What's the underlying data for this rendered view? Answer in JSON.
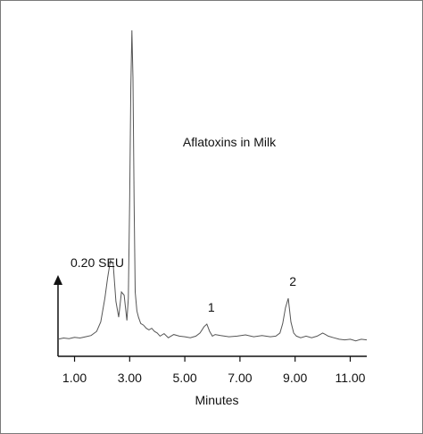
{
  "chart_data": {
    "type": "line",
    "title": "Aflatoxins in Milk",
    "xlabel": "Minutes",
    "ylabel": "",
    "scale_bar_label": "0.20 SEU",
    "xlim": [
      0.4,
      11.6
    ],
    "ylim": [
      0,
      1.0
    ],
    "x_ticks": [
      {
        "value": 1.0,
        "label": "1.00"
      },
      {
        "value": 3.0,
        "label": "3.00"
      },
      {
        "value": 5.0,
        "label": "5.00"
      },
      {
        "value": 7.0,
        "label": "7.00"
      },
      {
        "value": 9.0,
        "label": "9.00"
      },
      {
        "value": 11.0,
        "label": "11.00"
      }
    ],
    "annotations": [
      {
        "text": "1",
        "x": 5.83
      },
      {
        "text": "2",
        "x": 8.79
      }
    ],
    "series": [
      {
        "color": "#555555",
        "x": [
          0.4,
          0.6,
          0.8,
          1.0,
          1.2,
          1.4,
          1.6,
          1.8,
          1.95,
          2.1,
          2.2,
          2.3,
          2.4,
          2.5,
          2.6,
          2.7,
          2.8,
          2.9,
          2.95,
          3.0,
          3.04,
          3.08,
          3.12,
          3.16,
          3.2,
          3.26,
          3.32,
          3.4,
          3.5,
          3.6,
          3.7,
          3.8,
          3.9,
          4.0,
          4.1,
          4.25,
          4.4,
          4.6,
          4.8,
          5.0,
          5.2,
          5.4,
          5.55,
          5.7,
          5.8,
          5.9,
          6.0,
          6.1,
          6.3,
          6.6,
          6.9,
          7.2,
          7.5,
          7.8,
          8.1,
          8.3,
          8.45,
          8.55,
          8.65,
          8.75,
          8.85,
          8.95,
          9.05,
          9.2,
          9.4,
          9.6,
          9.8,
          10.0,
          10.1,
          10.2,
          10.4,
          10.6,
          10.8,
          11.0,
          11.2,
          11.4,
          11.6
        ],
        "y": [
          0.02,
          0.024,
          0.022,
          0.026,
          0.024,
          0.028,
          0.032,
          0.045,
          0.075,
          0.15,
          0.215,
          0.27,
          0.26,
          0.14,
          0.09,
          0.17,
          0.16,
          0.08,
          0.15,
          0.46,
          0.82,
          1.0,
          0.85,
          0.45,
          0.17,
          0.11,
          0.09,
          0.07,
          0.065,
          0.055,
          0.05,
          0.055,
          0.045,
          0.04,
          0.03,
          0.038,
          0.025,
          0.035,
          0.03,
          0.028,
          0.025,
          0.03,
          0.04,
          0.06,
          0.068,
          0.045,
          0.03,
          0.035,
          0.032,
          0.028,
          0.03,
          0.034,
          0.028,
          0.032,
          0.028,
          0.03,
          0.04,
          0.07,
          0.12,
          0.15,
          0.075,
          0.04,
          0.03,
          0.025,
          0.03,
          0.025,
          0.03,
          0.04,
          0.035,
          0.03,
          0.025,
          0.02,
          0.018,
          0.02,
          0.015,
          0.02,
          0.018
        ]
      }
    ]
  }
}
